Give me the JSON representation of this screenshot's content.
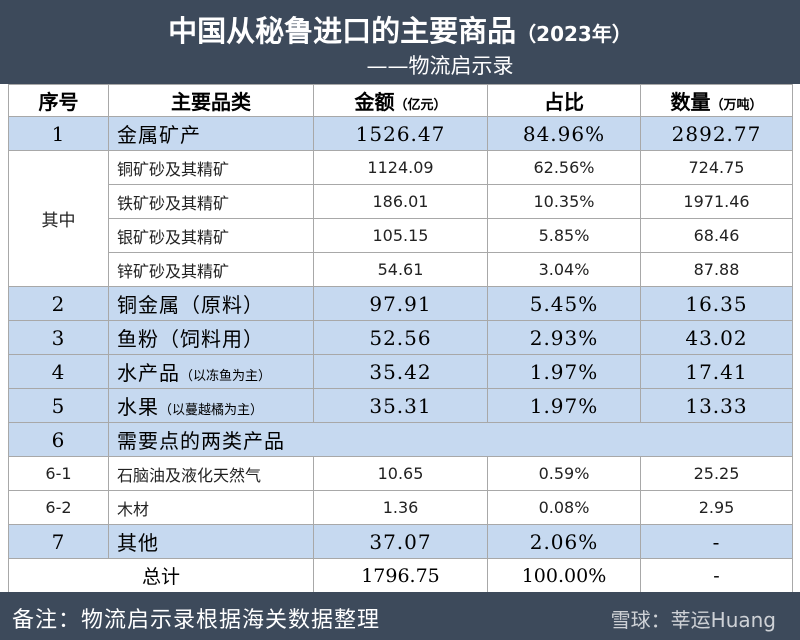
{
  "header": {
    "title": "中国从秘鲁进口的主要商品",
    "title_note": "（2023年）",
    "subtitle": "——物流启示录"
  },
  "table": {
    "columns": [
      {
        "text": "序号"
      },
      {
        "text": "主要品类"
      },
      {
        "text": "金额",
        "unit": "（亿元）"
      },
      {
        "text": "占比"
      },
      {
        "text": "数量",
        "unit": "（万吨）"
      }
    ],
    "rows": [
      {
        "no": "1",
        "name": "金属矿产",
        "amount": "1526.47",
        "share": "84.96%",
        "quantity": "2892.77"
      },
      {
        "no": "其中",
        "name": "铜矿砂及其精矿",
        "amount": "1124.09",
        "share": "62.56%",
        "quantity": "724.75"
      },
      {
        "name": "铁矿砂及其精矿",
        "amount": "186.01",
        "share": "10.35%",
        "quantity": "1971.46"
      },
      {
        "name": "银矿砂及其精矿",
        "amount": "105.15",
        "share": "5.85%",
        "quantity": "68.46"
      },
      {
        "name": "锌矿砂及其精矿",
        "amount": "54.61",
        "share": "3.04%",
        "quantity": "87.88"
      },
      {
        "no": "2",
        "name": "铜金属（原料）",
        "amount": "97.91",
        "share": "5.45%",
        "quantity": "16.35"
      },
      {
        "no": "3",
        "name": "鱼粉（饲料用）",
        "amount": "52.56",
        "share": "2.93%",
        "quantity": "43.02"
      },
      {
        "no": "4",
        "name": "水产品",
        "note": "（以冻鱼为主）",
        "amount": "35.42",
        "share": "1.97%",
        "quantity": "17.41"
      },
      {
        "no": "5",
        "name": "水果",
        "note": "（以蔓越橘为主）",
        "amount": "35.31",
        "share": "1.97%",
        "quantity": "13.33"
      },
      {
        "no": "6",
        "name": "需要点的两类产品"
      },
      {
        "no": "6-1",
        "name": "石脑油及液化天然气",
        "amount": "10.65",
        "share": "0.59%",
        "quantity": "25.25"
      },
      {
        "no": "6-2",
        "name": "木材",
        "amount": "1.36",
        "share": "0.08%",
        "quantity": "2.95"
      },
      {
        "no": "7",
        "name": "其他",
        "amount": "37.07",
        "share": "2.06%",
        "quantity": "-"
      },
      {
        "name": "总计",
        "amount": "1796.75",
        "share": "100.00%",
        "quantity": "-"
      }
    ]
  },
  "footer": {
    "note": "备注：物流启示录根据海关数据整理",
    "watermark": "雪球：莘运Huang"
  }
}
